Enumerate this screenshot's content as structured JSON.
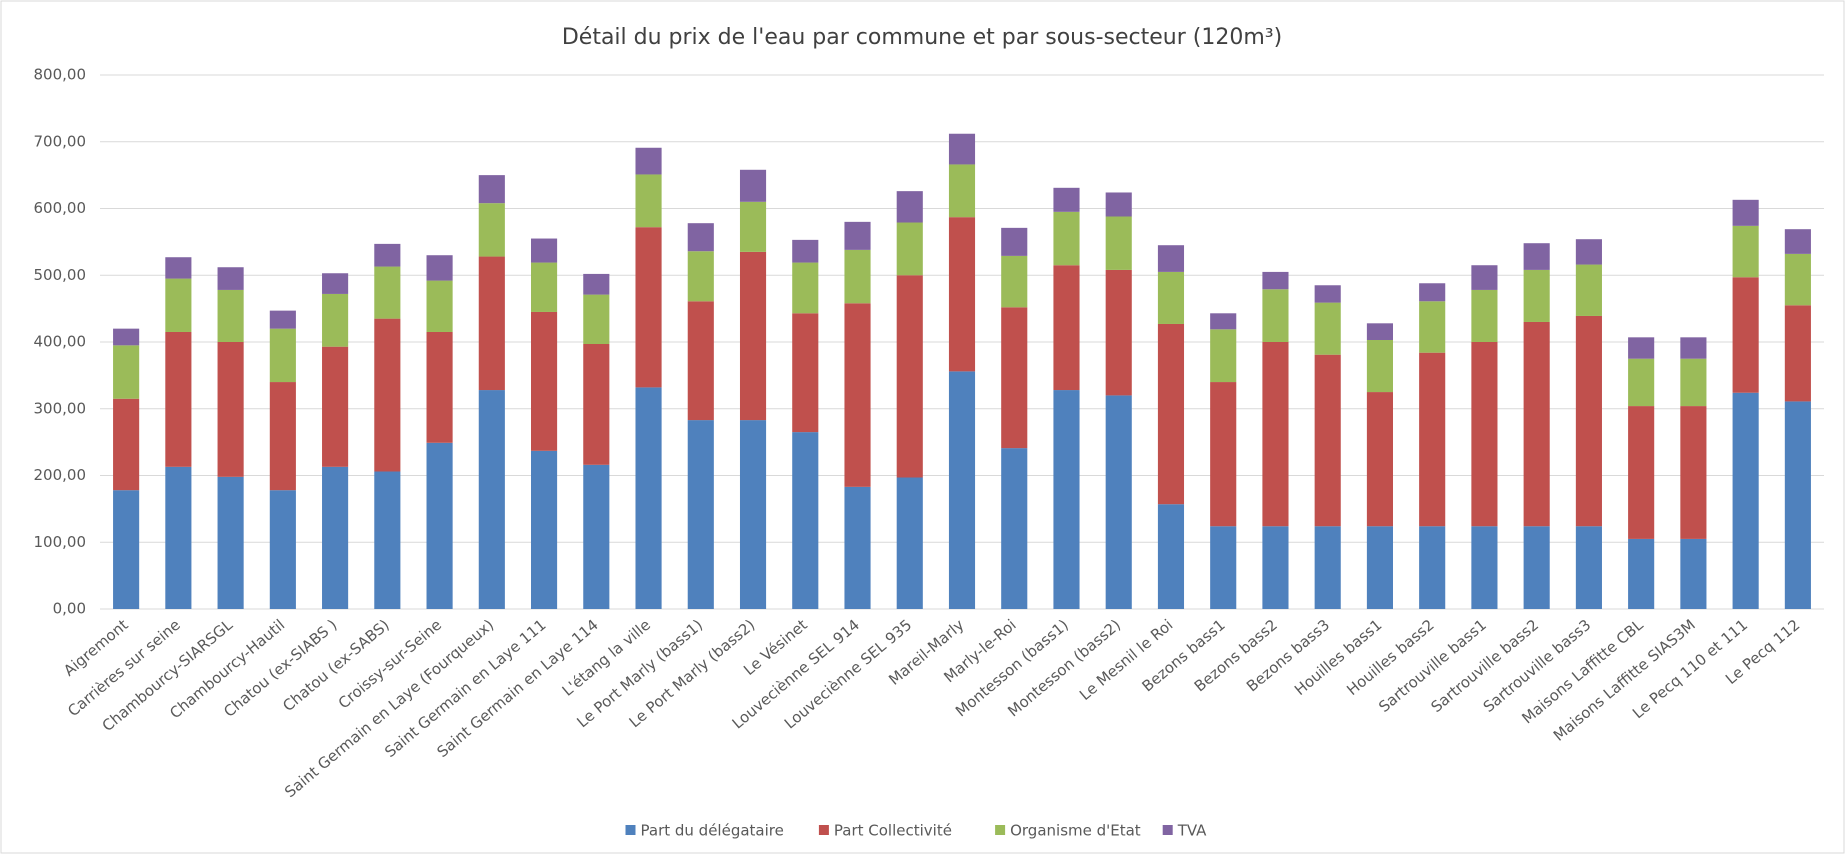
{
  "chart_data": {
    "type": "stacked_bar",
    "title": "Détail du prix de l'eau par commune et par sous-secteur (120m³)",
    "categories": [
      "Aigremont",
      "Carrières sur seine",
      "Chambourcy-SIARSGL",
      "Chambourcy-Hautil",
      "Chatou (ex-SIABS )",
      "Chatou (ex-SABS)",
      "Croissy-sur-Seine",
      "Saint Germain en Laye (Fourqueux)",
      "Saint Germain en Laye 111",
      "Saint Germain en Laye 114",
      "L'étang la ville",
      "Le Port Marly (bass1)",
      "Le Port Marly (bass2)",
      "Le Vésinet",
      "Louveciènne SEL 914",
      "Louveciènne SEL 935",
      "Mareil-Marly",
      "Marly-le-Roi",
      "Montesson (bass1)",
      "Montesson (bass2)",
      "Le Mesnil le Roi",
      "Bezons bass1",
      "Bezons bass2",
      "Bezons bass3",
      "Houilles bass1",
      "Houilles bass2",
      "Sartrouville bass1",
      "Sartrouville bass2",
      "Sartrouville bass3",
      "Maisons Laffitte CBL",
      "Maisons Laffitte SIAS3M",
      "Le Pecq 110 et 111",
      "Le Pecq 112"
    ],
    "series": [
      {
        "name": "Part du délégataire",
        "color": "#4f81bd",
        "values": [
          178,
          213,
          198,
          178,
          213,
          206,
          249,
          328,
          237,
          216,
          332,
          283,
          283,
          265,
          183,
          197,
          356,
          241,
          328,
          320,
          157,
          124,
          124,
          124,
          124,
          124,
          124,
          124,
          124,
          105,
          105,
          324,
          311
        ]
      },
      {
        "name": "Part Collectivité",
        "color": "#c0504d",
        "values": [
          137,
          202,
          202,
          162,
          180,
          229,
          166,
          200,
          208,
          181,
          240,
          178,
          252,
          178,
          275,
          303,
          231,
          211,
          187,
          188,
          270,
          216,
          276,
          257,
          201,
          260,
          276,
          306,
          315,
          199,
          199,
          173,
          144
        ]
      },
      {
        "name": "Organisme d'Etat",
        "color": "#9bbb59",
        "values": [
          80,
          80,
          78,
          80,
          79,
          78,
          77,
          80,
          74,
          74,
          79,
          75,
          75,
          76,
          80,
          79,
          79,
          77,
          80,
          80,
          78,
          79,
          79,
          78,
          78,
          77,
          78,
          78,
          77,
          71,
          71,
          77,
          77
        ]
      },
      {
        "name": "TVA",
        "color": "#8064a2",
        "values": [
          25,
          32,
          34,
          27,
          31,
          34,
          38,
          42,
          36,
          31,
          40,
          42,
          48,
          34,
          42,
          47,
          46,
          42,
          36,
          36,
          40,
          24,
          26,
          26,
          25,
          27,
          37,
          40,
          38,
          32,
          32,
          39,
          37
        ]
      }
    ],
    "ylim": [
      0,
      800
    ],
    "yticks": [
      {
        "value": 0,
        "label": "0,00"
      },
      {
        "value": 100,
        "label": "100,00"
      },
      {
        "value": 200,
        "label": "200,00"
      },
      {
        "value": 300,
        "label": "300,00"
      },
      {
        "value": 400,
        "label": "400,00"
      },
      {
        "value": 500,
        "label": "500,00"
      },
      {
        "value": 600,
        "label": "600,00"
      },
      {
        "value": 700,
        "label": "700,00"
      },
      {
        "value": 800,
        "label": "800,00"
      }
    ],
    "grid": true,
    "legend": "bottom"
  }
}
